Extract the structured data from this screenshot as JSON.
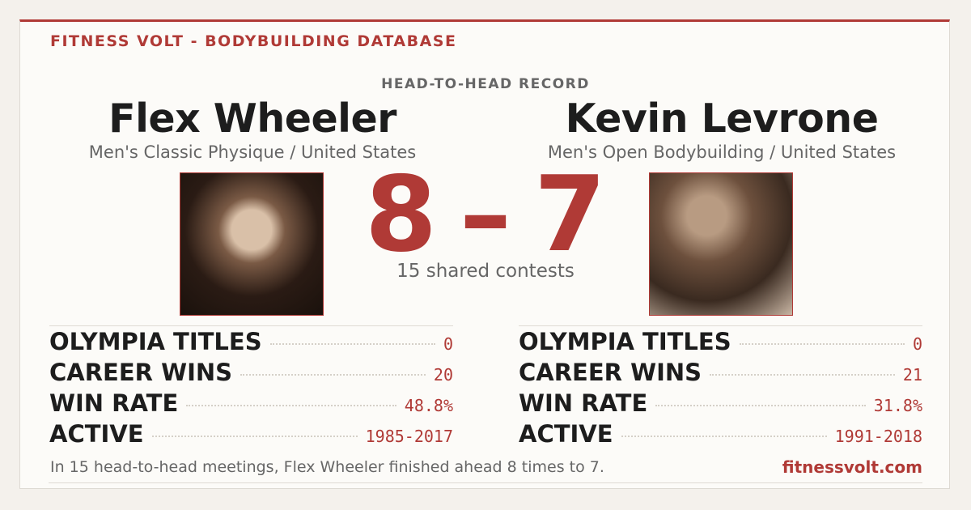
{
  "header": {
    "brand": "FITNESS VOLT - BODYBUILDING DATABASE",
    "subtitle": "HEAD-TO-HEAD RECORD"
  },
  "athletes": [
    {
      "name": "Flex Wheeler",
      "division": "Men's Classic Physique / United States",
      "score": "8",
      "stats": [
        {
          "label": "OLYMPIA TITLES",
          "value": "0"
        },
        {
          "label": "CAREER WINS",
          "value": "20"
        },
        {
          "label": "WIN RATE",
          "value": "48.8%"
        },
        {
          "label": "ACTIVE",
          "value": "1985-2017"
        }
      ]
    },
    {
      "name": "Kevin Levrone",
      "division": "Men's Open Bodybuilding / United States",
      "score": "7",
      "stats": [
        {
          "label": "OLYMPIA TITLES",
          "value": "0"
        },
        {
          "label": "CAREER WINS",
          "value": "21"
        },
        {
          "label": "WIN RATE",
          "value": "31.8%"
        },
        {
          "label": "ACTIVE",
          "value": "1991-2018"
        }
      ]
    }
  ],
  "score": {
    "separator": "–",
    "caption": "15 shared contests"
  },
  "footer": {
    "summary": "In 15 head-to-head meetings, Flex Wheeler finished ahead 8 times to 7.",
    "link": "fitnessvolt.com"
  }
}
